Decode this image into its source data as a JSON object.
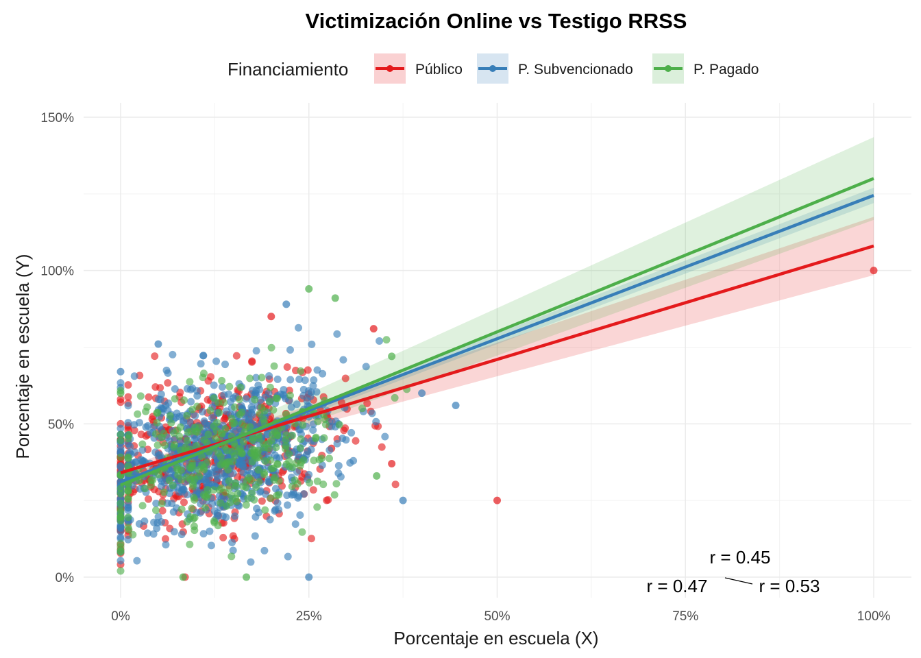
{
  "chart_data": {
    "type": "scatter",
    "title": "Victimización Online vs Testigo RRSS",
    "xlabel": "Porcentaje en escuela (X)",
    "ylabel": "Porcentaje en escuela (Y)",
    "xlim": [
      -0.05,
      1.03
    ],
    "ylim": [
      -0.04,
      1.5
    ],
    "x_ticks": [
      0,
      0.25,
      0.5,
      0.75,
      1.0
    ],
    "x_tick_labels": [
      "0%",
      "25%",
      "50%",
      "75%",
      "100%"
    ],
    "y_ticks": [
      0,
      0.5,
      1.0,
      1.5
    ],
    "y_tick_labels": [
      "0%",
      "50%",
      "100%",
      "150%"
    ],
    "grid": true,
    "legend": {
      "title": "Financiamiento",
      "position": "top",
      "entries": [
        "Público",
        "P. Subvencionado",
        "P. Pagado"
      ]
    },
    "series": [
      {
        "name": "Público",
        "color": "#e41a1c",
        "fit": {
          "intercept": 0.34,
          "slope": 0.74
        },
        "ci": {
          "x0_half": 0.015,
          "x1_half": 0.095
        },
        "r_label": "r = 0.47",
        "points_extra": [
          [
            0.5,
            0.25
          ],
          [
            1.0,
            1.0
          ],
          [
            0.336,
            0.81
          ],
          [
            0.2,
            0.85
          ],
          [
            0.36,
            0.37
          ],
          [
            0.28,
            0.42
          ]
        ]
      },
      {
        "name": "P. Subvencionado",
        "color": "#377eb8",
        "fit": {
          "intercept": 0.31,
          "slope": 0.935
        },
        "ci": {
          "x0_half": 0.01,
          "x1_half": 0.025
        },
        "r_label": "r = 0.45",
        "points_extra": [
          [
            0.445,
            0.56
          ],
          [
            0.375,
            0.25
          ],
          [
            0.25,
            0.0
          ],
          [
            0.05,
            0.76
          ],
          [
            0.0,
            0.67
          ],
          [
            0.22,
            0.89
          ],
          [
            0.4,
            0.6
          ]
        ]
      },
      {
        "name": "P. Pagado",
        "color": "#4daf4a",
        "fit": {
          "intercept": 0.3,
          "slope": 1.0
        },
        "ci": {
          "x0_half": 0.02,
          "x1_half": 0.135
        },
        "r_label": "r = 0.53",
        "points_extra": [
          [
            0.25,
            0.94
          ],
          [
            0.285,
            0.91
          ],
          [
            0.083,
            0.0
          ],
          [
            0.167,
            0.0
          ],
          [
            0.0,
            0.6
          ],
          [
            0.36,
            0.72
          ],
          [
            0.34,
            0.33
          ]
        ]
      }
    ]
  }
}
